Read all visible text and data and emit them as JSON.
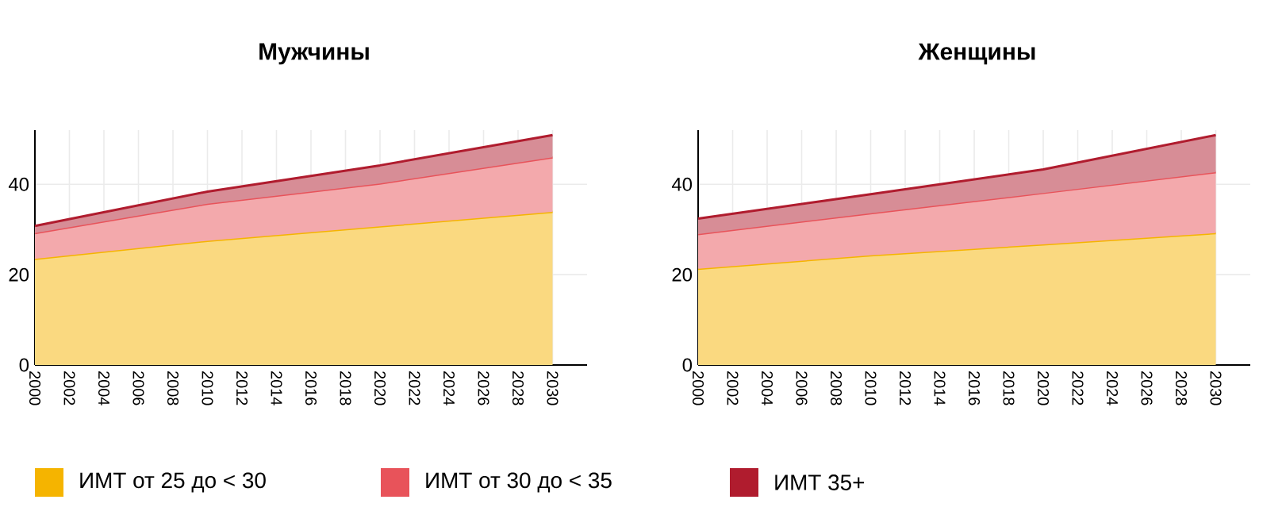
{
  "chart_data": [
    {
      "type": "area",
      "title": "Мужчины",
      "stacked": true,
      "x": [
        2000,
        2010,
        2020,
        2030
      ],
      "xlim": [
        2000,
        2032
      ],
      "xticks": [
        2000,
        2002,
        2004,
        2006,
        2008,
        2010,
        2012,
        2014,
        2016,
        2018,
        2020,
        2022,
        2024,
        2026,
        2028,
        2030
      ],
      "ylim": [
        0,
        52
      ],
      "yticks": [
        0,
        20,
        40
      ],
      "grid": true,
      "legend": "bottom",
      "series": [
        {
          "name": "ИМТ от 25 до < 30",
          "color": "#f5b400",
          "values": [
            23.5,
            27.5,
            30.7,
            33.9
          ]
        },
        {
          "name": "ИМТ от 30 до < 35",
          "color": "#e8535a",
          "values": [
            5.7,
            8.2,
            9.5,
            12.1
          ]
        },
        {
          "name": "ИМТ 35+",
          "color": "#b01c2e",
          "values": [
            1.6,
            2.7,
            4.0,
            4.9
          ]
        }
      ]
    },
    {
      "type": "area",
      "title": "Женщины",
      "stacked": true,
      "x": [
        2000,
        2010,
        2020,
        2030
      ],
      "xlim": [
        2000,
        2032
      ],
      "xticks": [
        2000,
        2002,
        2004,
        2006,
        2008,
        2010,
        2012,
        2014,
        2016,
        2018,
        2020,
        2022,
        2024,
        2026,
        2028,
        2030
      ],
      "ylim": [
        0,
        52
      ],
      "yticks": [
        0,
        20,
        40
      ],
      "grid": true,
      "series": [
        {
          "color": "#f5b400",
          "values": [
            21.3,
            24.3,
            26.7,
            29.2
          ]
        },
        {
          "color": "#e8535a",
          "values": [
            7.7,
            9.3,
            11.4,
            13.5
          ]
        },
        {
          "color": "#b01c2e",
          "values": [
            3.4,
            4.2,
            5.2,
            8.2
          ]
        }
      ]
    }
  ]
}
